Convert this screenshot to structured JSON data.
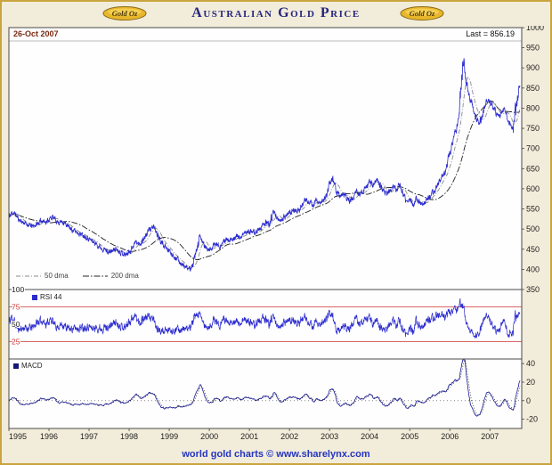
{
  "header": {
    "title": "Australian Gold Price",
    "logo_text": "Gold Oz"
  },
  "main_chart": {
    "date_label": "26-Oct 2007",
    "last_label": "Last = 856.19",
    "legend": [
      "50 dma",
      "200 dma"
    ]
  },
  "panels": {
    "rsi_label": "RSI 44",
    "macd_label": "MACD"
  },
  "footer": {
    "credit": "world gold charts © www.sharelynx.com"
  },
  "colors": {
    "price": "#2b2bd0",
    "ma50": "#8a8a8a",
    "ma200": "#222222",
    "rsi": "#2b2bd0",
    "macd": "#1c1c96",
    "signal": "#111111",
    "overbought_oversold": "#cc3333",
    "frame_gold": "#c9a43f",
    "header_text": "#26267d",
    "footer_text": "#2535c0"
  },
  "chart_data": {
    "type": "line",
    "title": "Australian Gold Price",
    "x_range": [
      1995,
      2007.82
    ],
    "x_label_ticks": [
      1995,
      1996,
      1997,
      1998,
      1999,
      2000,
      2001,
      2002,
      2003,
      2004,
      2005,
      2006,
      2007
    ],
    "main": {
      "ylim": [
        350,
        1000
      ],
      "y_ticks": [
        1000,
        950,
        900,
        850,
        800,
        750,
        700,
        650,
        600,
        550,
        500,
        450,
        400,
        350
      ],
      "last": 856.19,
      "series": [
        {
          "name": "gold-price",
          "interval": "monthly",
          "values": [
            528,
            542,
            536,
            524,
            518,
            514,
            510,
            506,
            510,
            516,
            522,
            518,
            524,
            530,
            522,
            516,
            520,
            512,
            504,
            498,
            494,
            490,
            486,
            482,
            476,
            470,
            464,
            458,
            452,
            448,
            442,
            446,
            452,
            446,
            440,
            436,
            444,
            456,
            468,
            462,
            472,
            484,
            498,
            506,
            494,
            476,
            464,
            452,
            446,
            438,
            428,
            420,
            412,
            404,
            400,
            408,
            436,
            478,
            468,
            452,
            448,
            456,
            464,
            458,
            466,
            474,
            468,
            476,
            484,
            478,
            486,
            492,
            496,
            488,
            494,
            500,
            508,
            516,
            510,
            545,
            532,
            520,
            526,
            534,
            540,
            548,
            542,
            550,
            560,
            572,
            566,
            558,
            570,
            564,
            572,
            580,
            612,
            628,
            598,
            582,
            590,
            576,
            568,
            580,
            592,
            584,
            596,
            604,
            618,
            606,
            628,
            612,
            596,
            588,
            596,
            604,
            598,
            610,
            584,
            568,
            572,
            564,
            576,
            568,
            560,
            572,
            580,
            592,
            604,
            618,
            632,
            648,
            688,
            726,
            752,
            800,
            925,
            858,
            826,
            806,
            772,
            762,
            792,
            818,
            818,
            800,
            786,
            778,
            794,
            786,
            762,
            748,
            812,
            856.19
          ]
        },
        {
          "name": "50 dma",
          "derived": "sma-50"
        },
        {
          "name": "200 dma",
          "derived": "sma-200"
        }
      ]
    },
    "rsi": {
      "label": "RSI 44",
      "last": 44,
      "ylim": [
        0,
        100
      ],
      "y_ticks": [
        100,
        75,
        50,
        25
      ],
      "guide_lines": [
        75,
        25
      ]
    },
    "macd": {
      "label": "MACD",
      "ylim": [
        -30,
        45
      ],
      "y_ticks": [
        40,
        20,
        0,
        -20
      ],
      "zero_line": 0
    }
  }
}
